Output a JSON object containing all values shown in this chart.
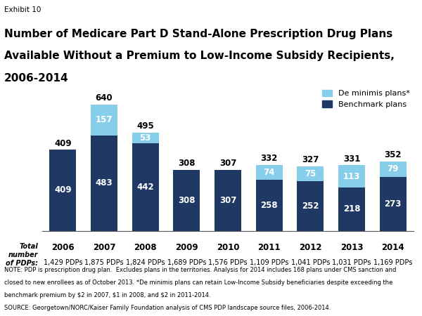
{
  "years": [
    "2006",
    "2007",
    "2008",
    "2009",
    "2010",
    "2011",
    "2012",
    "2013",
    "2014"
  ],
  "benchmark": [
    409,
    483,
    442,
    308,
    307,
    258,
    252,
    218,
    273
  ],
  "de_minimis": [
    0,
    157,
    53,
    0,
    0,
    74,
    75,
    113,
    79
  ],
  "totals": [
    409,
    640,
    495,
    308,
    307,
    332,
    327,
    331,
    352
  ],
  "pdp_labels": [
    "1,429 PDPs",
    "1,875 PDPs",
    "1,824 PDPs",
    "1,689 PDPs",
    "1,576 PDPs",
    "1,109 PDPs",
    "1,041 PDPs",
    "1,031 PDPs",
    "1,169 PDPs"
  ],
  "benchmark_color": "#1F3864",
  "de_minimis_color": "#87CEEB",
  "exhibit_label": "Exhibit 10",
  "title_line1": "Number of Medicare Part D Stand-Alone Prescription Drug Plans",
  "title_line2": "Available Without a Premium to Low-Income Subsidy Recipients,",
  "title_line3": "2006-2014",
  "legend_de_minimis": "De minimis plans*",
  "legend_benchmark": "Benchmark plans",
  "total_number_label": "Total\nnumber\nof PDPs:",
  "note1": "NOTE: PDP is prescription drug plan.  Excludes plans in the territories. Analysis for 2014 includes 168 plans under CMS sanction and",
  "note2": "closed to new enrollees as of October 2013. *De minimis plans can retain Low-Income Subsidy beneficiaries despite exceeding the",
  "note3": "benchmark premium by $2 in 2007, $1 in 2008, and $2 in 2011-2014.",
  "source": "SOURCE: Georgetown/NORC/Kaiser Family Foundation analysis of CMS PDP landscape source files, 2006-2014.",
  "ylim": [
    0,
    720
  ],
  "bar_width": 0.65
}
